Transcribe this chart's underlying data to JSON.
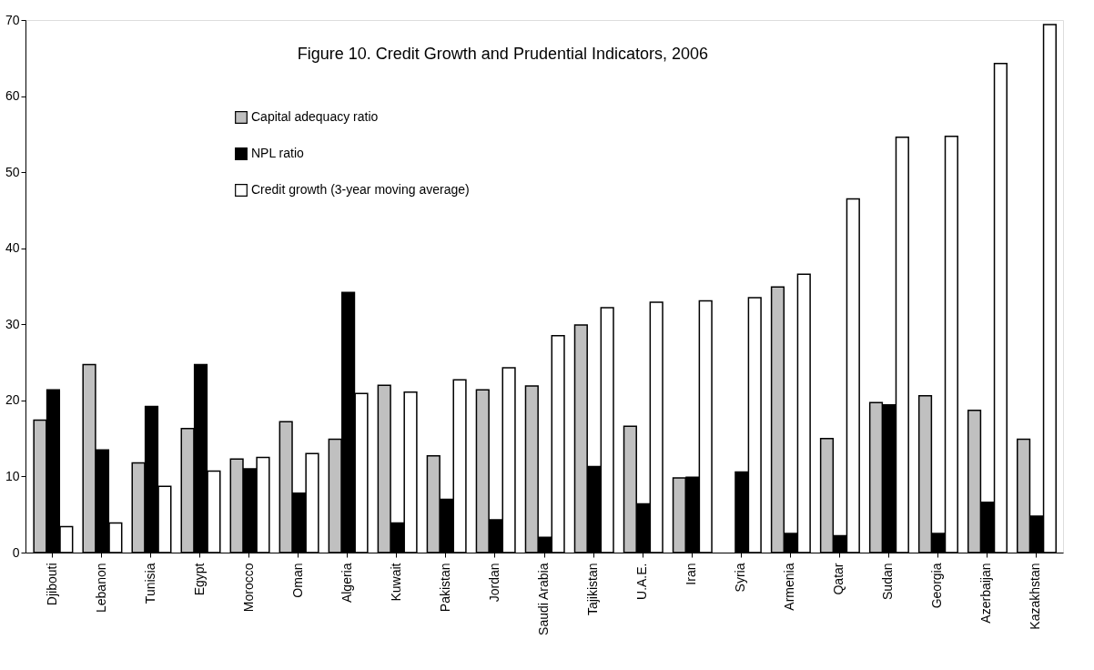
{
  "chart_data": {
    "type": "bar",
    "title": "Figure 10. Credit Growth and Prudential Indicators, 2006",
    "categories": [
      "Djibouti",
      "Lebanon",
      "Tunisia",
      "Egypt",
      "Morocco",
      "Oman",
      "Algeria",
      "Kuwait",
      "Pakistan",
      "Jordan",
      "Saudi Arabia",
      "Tajikistan",
      "U.A.E.",
      "Iran",
      "Syria",
      "Armenia",
      "Qatar",
      "Sudan",
      "Georgia",
      "Azerbaijan",
      "Kazakhstan"
    ],
    "series": [
      {
        "name": "Capital adequacy ratio",
        "color": "#c0c0c0",
        "values": [
          17.4,
          24.7,
          11.8,
          16.3,
          12.3,
          17.2,
          14.9,
          22.0,
          12.7,
          21.4,
          21.9,
          29.9,
          16.6,
          9.8,
          null,
          34.9,
          15.0,
          19.7,
          20.6,
          18.7,
          14.9
        ]
      },
      {
        "name": "NPL ratio",
        "color": "#000000",
        "values": [
          21.4,
          13.5,
          19.2,
          24.7,
          11.0,
          7.8,
          34.2,
          3.9,
          7.0,
          4.3,
          2.0,
          11.3,
          6.4,
          9.9,
          10.6,
          2.5,
          2.2,
          19.4,
          2.5,
          6.6,
          4.8
        ]
      },
      {
        "name": "Credit growth (3-year moving average)",
        "color": "#ffffff",
        "values": [
          3.4,
          3.9,
          8.7,
          10.7,
          12.5,
          13.0,
          20.9,
          21.1,
          22.7,
          24.3,
          28.5,
          32.2,
          32.9,
          33.1,
          33.5,
          36.6,
          46.5,
          54.6,
          54.7,
          64.3,
          69.4
        ]
      }
    ],
    "ylim": [
      0,
      70
    ],
    "yticks": [
      0,
      10,
      20,
      30,
      40,
      50,
      60,
      70
    ],
    "grid": false,
    "legend": "top left"
  }
}
